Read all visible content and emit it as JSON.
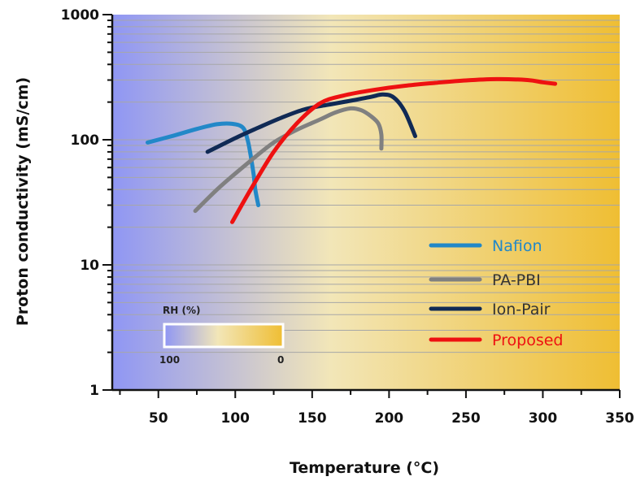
{
  "chart_data": {
    "type": "line",
    "title": "",
    "xlabel": "Temperature (°C)",
    "ylabel": "Proton conductivity (mS/cm)",
    "xlim": [
      20,
      350
    ],
    "ylim": [
      1,
      1000
    ],
    "yscale": "log",
    "grid": "horizontal minor lines",
    "legend_position": "bottom-right",
    "x_ticks": [
      "50",
      "100",
      "150",
      "200",
      "250",
      "300",
      "350"
    ],
    "x_tick_values": [
      50,
      100,
      150,
      200,
      250,
      300,
      350
    ],
    "y_ticks": [
      "1",
      "10",
      "100",
      "1000"
    ],
    "y_tick_values": [
      1,
      10,
      100,
      1000
    ],
    "background_gradient": {
      "label": "RH (%)",
      "min_label": "100",
      "max_label": "0",
      "color_wet": "#8f96f4",
      "color_mid": "#f2e6b8",
      "color_dry": "#efbe33"
    },
    "series": [
      {
        "name": "Nafion",
        "color": "#2288c8",
        "label_color": "#2288c8",
        "points": [
          [
            43,
            95
          ],
          [
            60,
            108
          ],
          [
            75,
            122
          ],
          [
            88,
            133
          ],
          [
            98,
            134
          ],
          [
            105,
            125
          ],
          [
            108,
            100
          ],
          [
            110,
            75
          ],
          [
            112,
            52
          ],
          [
            113,
            40
          ],
          [
            115,
            30
          ]
        ]
      },
      {
        "name": "PA-PBI",
        "color": "#808080",
        "label_color": "#333333",
        "points": [
          [
            74,
            27
          ],
          [
            90,
            42
          ],
          [
            110,
            68
          ],
          [
            125,
            95
          ],
          [
            140,
            120
          ],
          [
            155,
            145
          ],
          [
            165,
            165
          ],
          [
            175,
            178
          ],
          [
            182,
            172
          ],
          [
            188,
            155
          ],
          [
            193,
            135
          ],
          [
            195,
            110
          ],
          [
            195,
            85
          ]
        ]
      },
      {
        "name": "Ion-Pair",
        "color": "#102a55",
        "label_color": "#333333",
        "points": [
          [
            82,
            80
          ],
          [
            100,
            103
          ],
          [
            115,
            125
          ],
          [
            130,
            150
          ],
          [
            145,
            175
          ],
          [
            160,
            190
          ],
          [
            175,
            205
          ],
          [
            188,
            220
          ],
          [
            196,
            230
          ],
          [
            203,
            218
          ],
          [
            210,
            170
          ],
          [
            217,
            107
          ]
        ]
      },
      {
        "name": "Proposed",
        "color": "#ee1111",
        "label_color": "#ee1111",
        "points": [
          [
            98,
            22
          ],
          [
            110,
            40
          ],
          [
            125,
            80
          ],
          [
            140,
            135
          ],
          [
            155,
            195
          ],
          [
            170,
            225
          ],
          [
            190,
            250
          ],
          [
            210,
            270
          ],
          [
            230,
            285
          ],
          [
            250,
            298
          ],
          [
            270,
            305
          ],
          [
            290,
            300
          ],
          [
            300,
            288
          ],
          [
            308,
            280
          ]
        ]
      }
    ]
  }
}
